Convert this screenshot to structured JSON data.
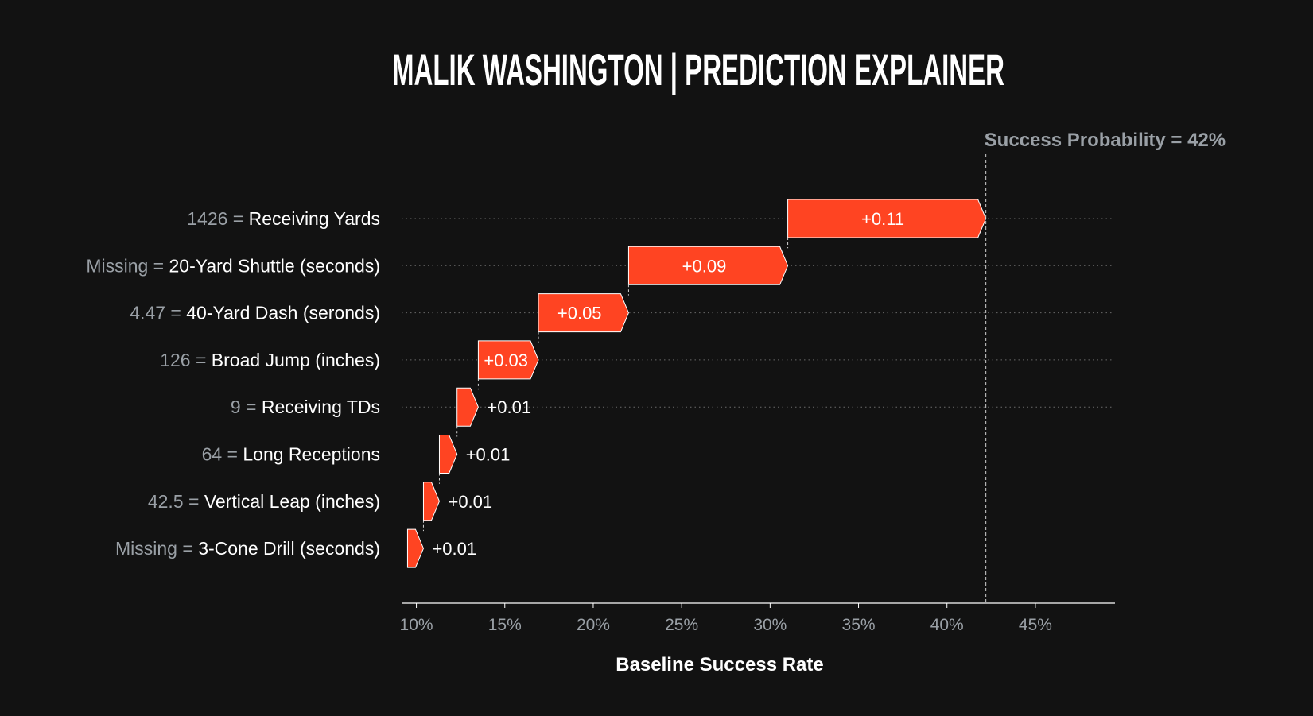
{
  "chart_data": {
    "type": "waterfall",
    "title": "MALIK WASHINGTON | PREDICTION EXPLAINER",
    "xlabel": "Baseline Success Rate",
    "final_annotation": "Success Probability = 42%",
    "final_value": 42.2,
    "base_value": 9.5,
    "xlim": [
      9.3,
      49.5
    ],
    "xticks": [
      10,
      15,
      20,
      25,
      30,
      35,
      40,
      45
    ],
    "xtick_labels": [
      "10%",
      "15%",
      "20%",
      "25%",
      "30%",
      "35%",
      "40%",
      "45%"
    ],
    "bar_color": "#ff4422",
    "features": [
      {
        "value": "1426",
        "name": "Receiving Yards",
        "contribution": "+0.11",
        "start": 31.0,
        "end": 42.2
      },
      {
        "value": "Missing",
        "name": "20-Yard Shuttle (seconds)",
        "contribution": "+0.09",
        "start": 22.0,
        "end": 31.0
      },
      {
        "value": "4.47",
        "name": "40-Yard Dash (seronds)",
        "contribution": "+0.05",
        "start": 16.9,
        "end": 22.0
      },
      {
        "value": "126",
        "name": "Broad Jump (inches)",
        "contribution": "+0.03",
        "start": 13.5,
        "end": 16.9
      },
      {
        "value": "9",
        "name": "Receiving TDs",
        "contribution": "+0.01",
        "start": 12.3,
        "end": 13.5
      },
      {
        "value": "64",
        "name": "Long Receptions",
        "contribution": "+0.01",
        "start": 11.3,
        "end": 12.3
      },
      {
        "value": "42.5",
        "name": "Vertical Leap (inches)",
        "contribution": "+0.01",
        "start": 10.4,
        "end": 11.3
      },
      {
        "value": "Missing",
        "name": "3-Cone Drill (seconds)",
        "contribution": "+0.01",
        "start": 9.5,
        "end": 10.4
      }
    ]
  }
}
